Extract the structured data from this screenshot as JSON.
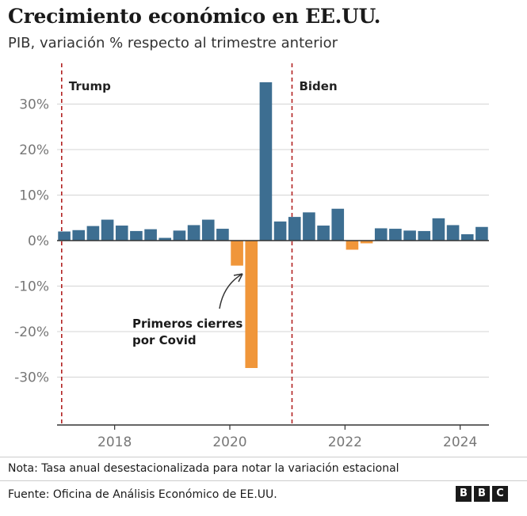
{
  "header": {
    "title": "Crecimiento económico en EE.UU.",
    "subtitle": "PIB, variación % respecto al trimestre anterior"
  },
  "footer": {
    "note": "Nota: Tasa anual desestacionalizada para notar la variación estacional",
    "source": "Fuente: Oficina de Análisis Económico de EE.UU.",
    "logo_letters": [
      "B",
      "B",
      "C"
    ]
  },
  "colors": {
    "positive": "#3d6e91",
    "negative": "#f0963a",
    "grid": "#d4d4d4",
    "axis_text": "#777777",
    "marker": "#b22222",
    "axis_line": "#333333"
  },
  "chart_data": {
    "type": "bar",
    "title": "Crecimiento económico en EE.UU.",
    "ylabel": "PIB, variación % respecto al trimestre anterior",
    "ylim": [
      -37,
      37
    ],
    "xlim": [
      2017.0,
      2024.5
    ],
    "yticks": [
      30,
      20,
      10,
      0,
      -10,
      -20,
      -30
    ],
    "ytick_labels": [
      "30%",
      "20%",
      "10%",
      "0%",
      "-10%",
      "-20%",
      "-30%"
    ],
    "xticks": [
      2018,
      2020,
      2022,
      2024
    ],
    "xtick_labels": [
      "2018",
      "2020",
      "2022",
      "2024"
    ],
    "categories": [
      "2017 T1",
      "2017 T2",
      "2017 T3",
      "2017 T4",
      "2018 T1",
      "2018 T2",
      "2018 T3",
      "2018 T4",
      "2019 T1",
      "2019 T2",
      "2019 T3",
      "2019 T4",
      "2020 T1",
      "2020 T2",
      "2020 T3",
      "2020 T4",
      "2021 T1",
      "2021 T2",
      "2021 T3",
      "2021 T4",
      "2022 T1",
      "2022 T2",
      "2022 T3",
      "2022 T4",
      "2023 T1",
      "2023 T2",
      "2023 T3",
      "2023 T4",
      "2024 T1",
      "2024 T2"
    ],
    "values": [
      2.0,
      2.3,
      3.2,
      4.6,
      3.3,
      2.1,
      2.5,
      0.6,
      2.2,
      3.4,
      4.6,
      2.6,
      -5.5,
      -28.0,
      34.8,
      4.2,
      5.2,
      6.2,
      3.3,
      7.0,
      -2.0,
      -0.6,
      2.7,
      2.6,
      2.2,
      2.1,
      4.9,
      3.4,
      1.4,
      3.0
    ],
    "markers": [
      {
        "label": "Trump",
        "x": 2017.08
      },
      {
        "label": "Biden",
        "x": 2021.08
      }
    ],
    "annotation": {
      "lines": [
        "Primeros cierres",
        "por Covid"
      ]
    }
  }
}
